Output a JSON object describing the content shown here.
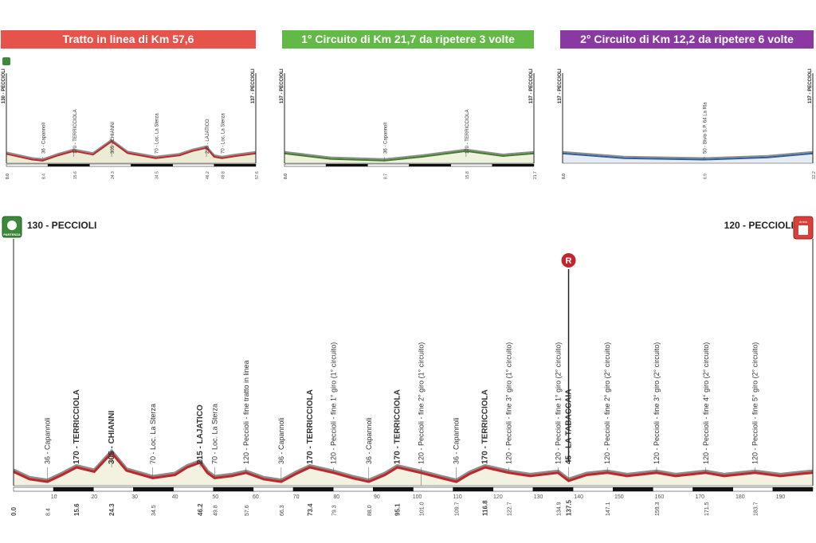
{
  "banners": {
    "stage1": "Tratto in linea di Km 57,6",
    "stage2": "1° Circuito di Km 21,7 da ripetere 3 volte",
    "stage3": "2° Circuito di Km 12,2 da ripetere 6 volte"
  },
  "colors": {
    "red": "#e5534b",
    "green": "#62b945",
    "purple": "#8a39a3",
    "profile_main": "#c0262c",
    "profile_green": "#3f7d2a",
    "profile_blue": "#2f5f9a",
    "fill": "#f3f1e0"
  },
  "chart_data": [
    {
      "id": "mini1",
      "type": "area",
      "xlim": [
        0,
        57.6
      ],
      "ylim": [
        0,
        700
      ],
      "start_label": "130 - PECCIOLI",
      "end_label": "137 - PECCIOLI",
      "x": [
        0,
        6,
        8.4,
        12,
        15.6,
        20,
        24.3,
        28,
        34.5,
        40,
        43,
        46.2,
        48,
        49.8,
        53,
        57.6
      ],
      "y": [
        130,
        50,
        36,
        110,
        170,
        120,
        305,
        140,
        70,
        110,
        170,
        215,
        90,
        70,
        100,
        137
      ],
      "tick_labels": [
        "0.0",
        "8.4",
        "15.6",
        "24.3",
        "34.5",
        "46.2",
        "49.8",
        "57.6"
      ],
      "tick_values": [
        0,
        8.4,
        15.6,
        24.3,
        34.5,
        46.2,
        49.8,
        57.6
      ],
      "points": [
        {
          "x": 8.4,
          "label": "36 - Capannoli"
        },
        {
          "x": 15.6,
          "label": "170 - TERRICCIOLA"
        },
        {
          "x": 24.3,
          "label": "305 - CHIANNI"
        },
        {
          "x": 34.5,
          "label": "70 - Loc. La Sterza"
        },
        {
          "x": 46.2,
          "label": "215 - LAJATICO"
        },
        {
          "x": 49.8,
          "label": "70 - Loc. La Sterza"
        }
      ]
    },
    {
      "id": "mini2",
      "type": "area",
      "xlim": [
        0,
        21.7
      ],
      "ylim": [
        0,
        700
      ],
      "start_label": "137 - PECCIOLI",
      "end_label": "137 - PECCIOLI",
      "x": [
        0,
        4,
        8.7,
        12,
        15.8,
        19,
        21.7
      ],
      "y": [
        137,
        60,
        36,
        90,
        170,
        100,
        137
      ],
      "tick_labels": [
        "0.0",
        "8.7",
        "15.8",
        "21.7"
      ],
      "tick_values": [
        0,
        8.7,
        15.8,
        21.7
      ],
      "points": [
        {
          "x": 8.7,
          "label": "36 - Capannoli"
        },
        {
          "x": 15.8,
          "label": "170 - TERRICCIOLA"
        }
      ]
    },
    {
      "id": "mini3",
      "type": "area",
      "xlim": [
        0,
        12.2
      ],
      "ylim": [
        0,
        700
      ],
      "start_label": "137 - PECCIOLI",
      "end_label": "137 - PECCIOLI",
      "x": [
        0,
        3,
        6.9,
        10,
        12.2
      ],
      "y": [
        137,
        70,
        50,
        80,
        137
      ],
      "tick_labels": [
        "0.0",
        "6.9",
        "12.2"
      ],
      "tick_values": [
        0,
        6.9,
        12.2
      ],
      "points": [
        {
          "x": 6.9,
          "label": "50 - Bivio S.P. 64 La Rla"
        }
      ]
    },
    {
      "id": "main",
      "type": "area",
      "xlim": [
        0,
        198
      ],
      "ylim": [
        0,
        1200
      ],
      "start_label": "130 - PECCIOLI",
      "end_label": "120 - PECCIOLI",
      "x": [
        0,
        4,
        8.4,
        12,
        15.6,
        20,
        24.3,
        28,
        34.5,
        40,
        43,
        46.2,
        48,
        49.8,
        54,
        57.6,
        62,
        66.3,
        70,
        73.4,
        79.3,
        84,
        88,
        92,
        95.1,
        100.9,
        106,
        109.7,
        113,
        116.8,
        122.7,
        128,
        134.9,
        137.5,
        142,
        147.1,
        152,
        159.3,
        164,
        171.5,
        176,
        183.7,
        190,
        195,
        198
      ],
      "y": [
        130,
        60,
        36,
        100,
        170,
        130,
        305,
        140,
        70,
        100,
        170,
        215,
        120,
        70,
        90,
        120,
        60,
        36,
        110,
        170,
        120,
        70,
        36,
        100,
        170,
        120,
        70,
        36,
        110,
        170,
        120,
        90,
        120,
        45,
        100,
        120,
        90,
        120,
        90,
        120,
        90,
        120,
        90,
        110,
        120
      ],
      "tick_labels": [
        "0.0",
        "8.4",
        "15.6",
        "24.3",
        "34.5",
        "46.2",
        "49.8",
        "57.6",
        "66.3",
        "73.4",
        "79.3",
        "88.0",
        "95.1",
        "101.0",
        "109.7",
        "116.8",
        "122.7",
        "134.9",
        "137.5",
        "147.1",
        "159.3",
        "171.5",
        "183.7"
      ],
      "tick_values": [
        0,
        8.4,
        15.6,
        24.3,
        34.5,
        46.2,
        49.8,
        57.6,
        66.3,
        73.4,
        79.3,
        88.0,
        95.1,
        101.0,
        109.7,
        116.8,
        122.7,
        134.9,
        137.5,
        147.1,
        159.3,
        171.5,
        183.7
      ],
      "axis_numbers": [
        "10",
        "20",
        "30",
        "40",
        "50",
        "60",
        "70",
        "80",
        "90",
        "100",
        "110",
        "120",
        "130",
        "140",
        "150",
        "160",
        "170",
        "180",
        "190"
      ],
      "points": [
        {
          "x": 8.4,
          "label": "36 - Capannoli",
          "major": false
        },
        {
          "x": 15.6,
          "label": "170 - TERRICCIOLA",
          "major": true
        },
        {
          "x": 24.3,
          "label": "305 - CHIANNI",
          "major": true
        },
        {
          "x": 34.5,
          "label": "70 - Loc. La Sterza",
          "major": false
        },
        {
          "x": 46.2,
          "label": "215 - LAJATICO",
          "major": true
        },
        {
          "x": 49.8,
          "label": "70 - Loc. La Sterza",
          "major": false
        },
        {
          "x": 57.6,
          "label": "120 - Peccioli - fine tratto in linea",
          "major": false
        },
        {
          "x": 66.3,
          "label": "36 - Capannoli",
          "major": false
        },
        {
          "x": 73.4,
          "label": "170 - TERRICCIOLA",
          "major": true
        },
        {
          "x": 79.3,
          "label": "120 - Peccioli - fine 1° giro (1° circuito)",
          "major": false
        },
        {
          "x": 88.0,
          "label": "36 - Capannoli",
          "major": false
        },
        {
          "x": 95.1,
          "label": "170 - TERRICCIOLA",
          "major": true
        },
        {
          "x": 101.0,
          "label": "120 - Peccioli - fine 2° giro (1° circuito)",
          "major": false
        },
        {
          "x": 109.7,
          "label": "36 - Capannoli",
          "major": false
        },
        {
          "x": 116.8,
          "label": "170 - TERRICCIOLA",
          "major": true
        },
        {
          "x": 122.7,
          "label": "120 - Peccioli - fine 3° giro (1° circuito)",
          "major": false
        },
        {
          "x": 134.9,
          "label": "120 - Peccioli - fine 1° giro (2° circuito)",
          "major": false
        },
        {
          "x": 137.5,
          "label": "45 - LA TABACCAIA",
          "major": true
        },
        {
          "x": 147.1,
          "label": "120 - Peccioli - fine 2° giro (2° circuito)",
          "major": false
        },
        {
          "x": 159.3,
          "label": "120 - Peccioli - fine 3° giro (2° circuito)",
          "major": false
        },
        {
          "x": 171.5,
          "label": "120 - Peccioli - fine 4° giro (2° circuito)",
          "major": false
        },
        {
          "x": 183.7,
          "label": "120 - Peccioli - fine 5° giro (2° circuito)",
          "major": false
        }
      ],
      "markers": {
        "start_badge": "PARTENZA",
        "end_badge": "Arrivo",
        "refuel_letter": "R",
        "refuel_x": 137.5
      }
    }
  ]
}
